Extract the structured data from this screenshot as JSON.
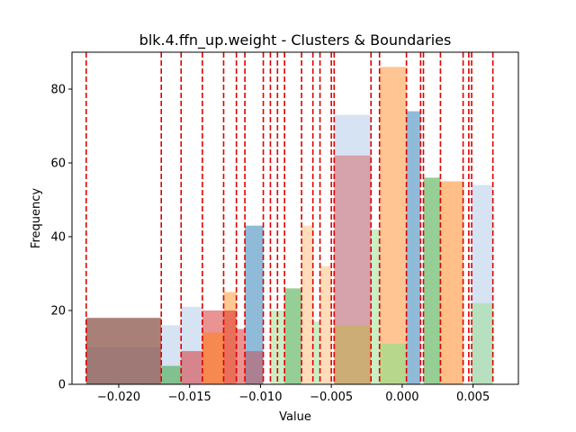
{
  "chart_data": {
    "type": "bar",
    "title": "blk.4.ffn_up.weight - Clusters & Boundaries",
    "xlabel": "Value",
    "ylabel": "Frequency",
    "xlim": [
      -0.0233,
      0.0082
    ],
    "ylim": [
      0,
      90
    ],
    "grid": false,
    "x_ticks": [
      -0.02,
      -0.015,
      -0.01,
      -0.005,
      0.0,
      0.005
    ],
    "x_tick_labels": [
      "−0.020",
      "−0.015",
      "−0.010",
      "−0.005",
      "0.000",
      "0.005"
    ],
    "y_ticks": [
      0,
      20,
      40,
      60,
      80
    ],
    "y_tick_labels": [
      "0",
      "20",
      "40",
      "60",
      "80"
    ],
    "boundaries": [
      -0.0223,
      -0.017,
      -0.0156,
      -0.0141,
      -0.0126,
      -0.0117,
      -0.0111,
      -0.0098,
      -0.0093,
      -0.0088,
      -0.0083,
      -0.0071,
      -0.0063,
      -0.0058,
      -0.005,
      -0.0048,
      -0.0022,
      -0.0016,
      0.0003,
      0.0013,
      0.0015,
      0.0027,
      0.0043,
      0.0047,
      0.0049,
      0.0064
    ],
    "boundary_color": "#e00000",
    "bars": [
      {
        "x0": -0.0223,
        "x1": -0.017,
        "value": 10,
        "color": "#aec7e8",
        "opacity": 0.5
      },
      {
        "x0": -0.0223,
        "x1": -0.017,
        "value": 18,
        "color": "#8c564b",
        "opacity": 0.75
      },
      {
        "x0": -0.017,
        "x1": -0.0156,
        "value": 16,
        "color": "#aec7e8",
        "opacity": 0.5
      },
      {
        "x0": -0.017,
        "x1": -0.0156,
        "value": 5,
        "color": "#2ca02c",
        "opacity": 0.5
      },
      {
        "x0": -0.0156,
        "x1": -0.0141,
        "value": 21,
        "color": "#aec7e8",
        "opacity": 0.5
      },
      {
        "x0": -0.0156,
        "x1": -0.0141,
        "value": 9,
        "color": "#d62728",
        "opacity": 0.5
      },
      {
        "x0": -0.0141,
        "x1": -0.0126,
        "value": 20,
        "color": "#d62728",
        "opacity": 0.5
      },
      {
        "x0": -0.0141,
        "x1": -0.0126,
        "value": 14,
        "color": "#ff7f0e",
        "opacity": 0.5
      },
      {
        "x0": -0.0126,
        "x1": -0.0117,
        "value": 25,
        "color": "#ffbb78",
        "opacity": 0.8
      },
      {
        "x0": -0.0126,
        "x1": -0.0117,
        "value": 20,
        "color": "#d62728",
        "opacity": 0.55
      },
      {
        "x0": -0.0117,
        "x1": -0.0111,
        "value": 15,
        "color": "#d62728",
        "opacity": 0.5
      },
      {
        "x0": -0.0111,
        "x1": -0.0098,
        "value": 43,
        "color": "#1f77b4",
        "opacity": 0.5
      },
      {
        "x0": -0.0111,
        "x1": -0.0098,
        "value": 9,
        "color": "#d62728",
        "opacity": 0.4
      },
      {
        "x0": -0.0093,
        "x1": -0.0083,
        "value": 20,
        "color": "#98df8a",
        "opacity": 0.5
      },
      {
        "x0": -0.0083,
        "x1": -0.0071,
        "value": 26,
        "color": "#2ca02c",
        "opacity": 0.5
      },
      {
        "x0": -0.0071,
        "x1": -0.0063,
        "value": 43,
        "color": "#ffbb78",
        "opacity": 0.5
      },
      {
        "x0": -0.0063,
        "x1": -0.0058,
        "value": 17,
        "color": "#98df8a",
        "opacity": 0.5
      },
      {
        "x0": -0.0058,
        "x1": -0.005,
        "value": 32,
        "color": "#ffbb78",
        "opacity": 0.5
      },
      {
        "x0": -0.0048,
        "x1": -0.0022,
        "value": 73,
        "color": "#aec7e8",
        "opacity": 0.5
      },
      {
        "x0": -0.0048,
        "x1": -0.0022,
        "value": 62,
        "color": "#d62728",
        "opacity": 0.35
      },
      {
        "x0": -0.0048,
        "x1": -0.0022,
        "value": 16,
        "color": "#bcbd22",
        "opacity": 0.4
      },
      {
        "x0": -0.0022,
        "x1": -0.0016,
        "value": 42,
        "color": "#98df8a",
        "opacity": 0.5
      },
      {
        "x0": -0.0016,
        "x1": 0.0003,
        "value": 86,
        "color": "#ff7f0e",
        "opacity": 0.45
      },
      {
        "x0": -0.0016,
        "x1": 0.0003,
        "value": 11,
        "color": "#98df8a",
        "opacity": 0.7
      },
      {
        "x0": 0.0003,
        "x1": 0.0013,
        "value": 74,
        "color": "#1f77b4",
        "opacity": 0.5
      },
      {
        "x0": 0.0015,
        "x1": 0.0027,
        "value": 56,
        "color": "#2ca02c",
        "opacity": 0.5
      },
      {
        "x0": 0.0027,
        "x1": 0.0043,
        "value": 55,
        "color": "#ff7f0e",
        "opacity": 0.5
      },
      {
        "x0": 0.0049,
        "x1": 0.0064,
        "value": 54,
        "color": "#aec7e8",
        "opacity": 0.5
      },
      {
        "x0": 0.0049,
        "x1": 0.0064,
        "value": 22,
        "color": "#98df8a",
        "opacity": 0.5
      }
    ]
  }
}
